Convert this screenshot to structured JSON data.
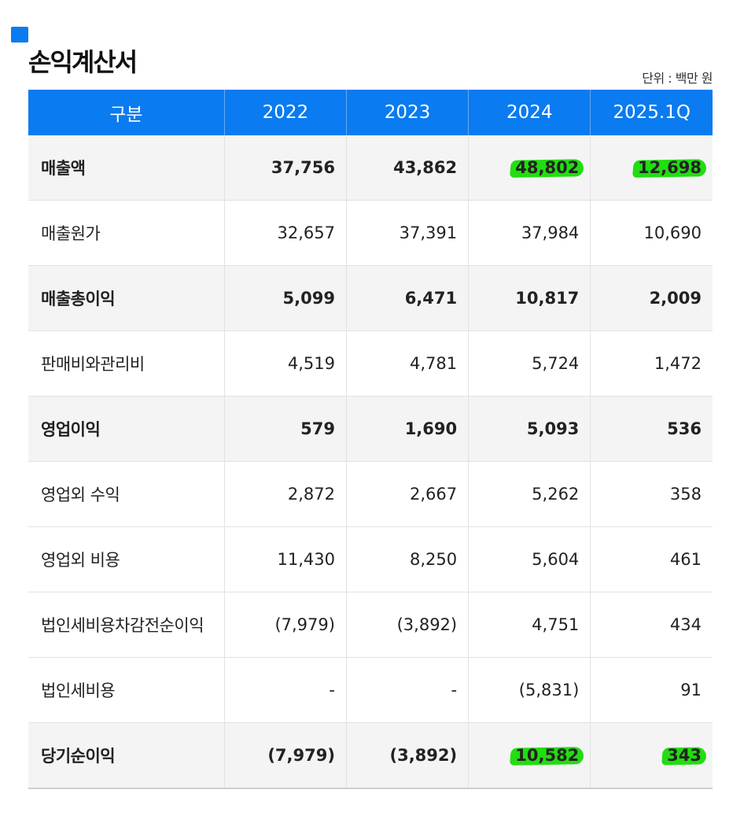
{
  "header": {
    "title": "손익계산서",
    "unit": "단위 : 백만 원"
  },
  "colors": {
    "accent": "#0a7bf0",
    "highlight": "#22dd11",
    "bold_row_bg": "#f4f4f4"
  },
  "table": {
    "columns": [
      "구분",
      "2022",
      "2023",
      "2024",
      "2025.1Q"
    ],
    "rows": [
      {
        "label": "매출액",
        "values": [
          "37,756",
          "43,862",
          "48,802",
          "12,698"
        ]
      },
      {
        "label": "매출원가",
        "values": [
          "32,657",
          "37,391",
          "37,984",
          "10,690"
        ]
      },
      {
        "label": "매출총이익",
        "values": [
          "5,099",
          "6,471",
          "10,817",
          "2,009"
        ]
      },
      {
        "label": "판매비와관리비",
        "values": [
          "4,519",
          "4,781",
          "5,724",
          "1,472"
        ]
      },
      {
        "label": "영업이익",
        "values": [
          "579",
          "1,690",
          "5,093",
          "536"
        ]
      },
      {
        "label": "영업외 수익",
        "values": [
          "2,872",
          "2,667",
          "5,262",
          "358"
        ]
      },
      {
        "label": "영업외 비용",
        "values": [
          "11,430",
          "8,250",
          "5,604",
          "461"
        ]
      },
      {
        "label": "법인세비용차감전순이익",
        "values": [
          "(7,979)",
          "(3,892)",
          "4,751",
          "434"
        ]
      },
      {
        "label": "법인세비용",
        "values": [
          "-",
          "-",
          "(5,831)",
          "91"
        ]
      },
      {
        "label": "당기순이익",
        "values": [
          "(7,979)",
          "(3,892)",
          "10,582",
          "343"
        ]
      }
    ]
  }
}
